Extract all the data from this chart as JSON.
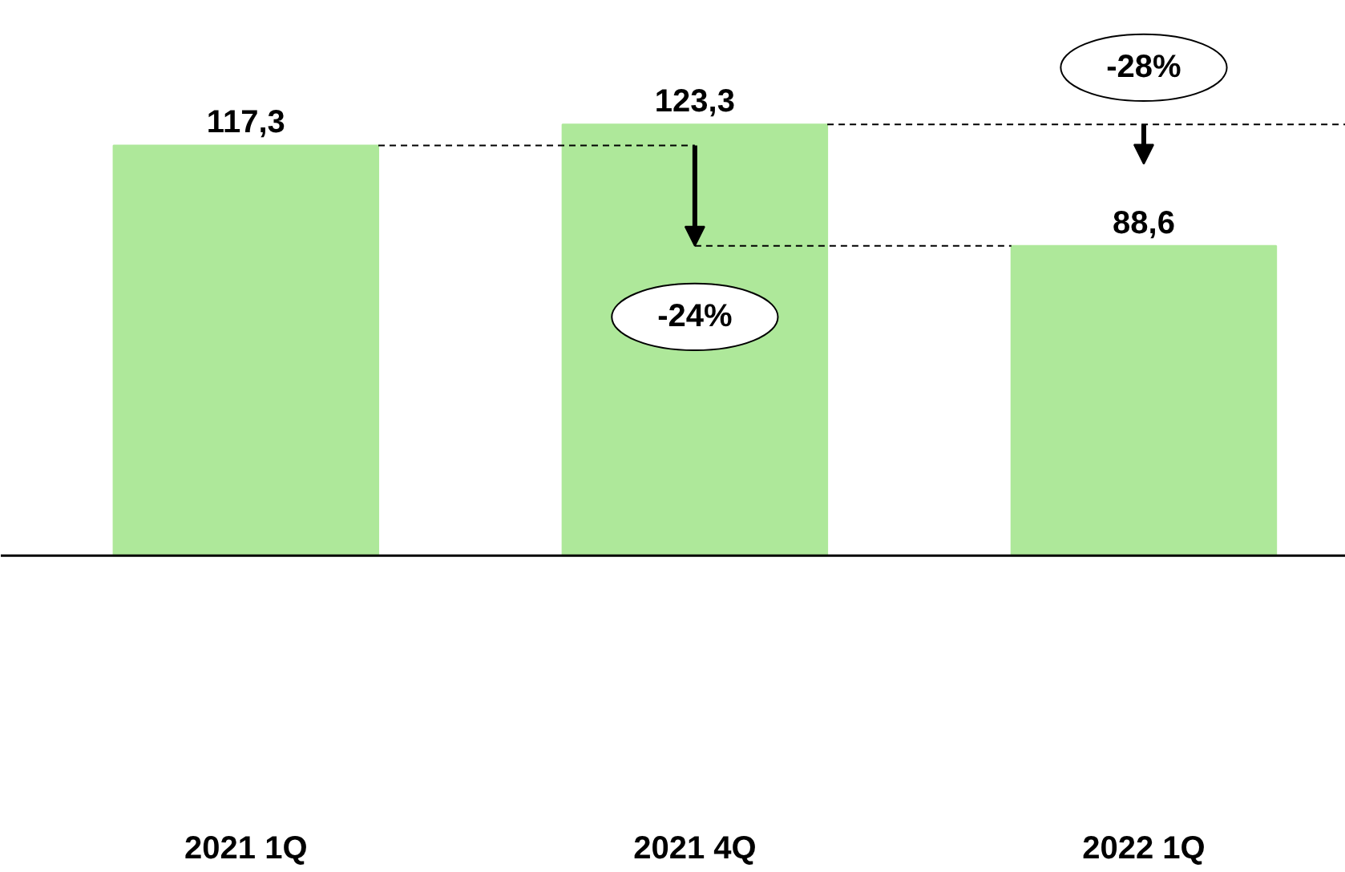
{
  "chart_data": {
    "type": "bar",
    "categories": [
      "2021 1Q",
      "2021 4Q",
      "2022 1Q"
    ],
    "values": [
      117.3,
      123.3,
      88.6
    ],
    "value_labels": [
      "117,3",
      "123,3",
      "88,6"
    ],
    "color": "#aee89a",
    "annotations": [
      "-24%",
      "-28%"
    ],
    "grid": false
  }
}
